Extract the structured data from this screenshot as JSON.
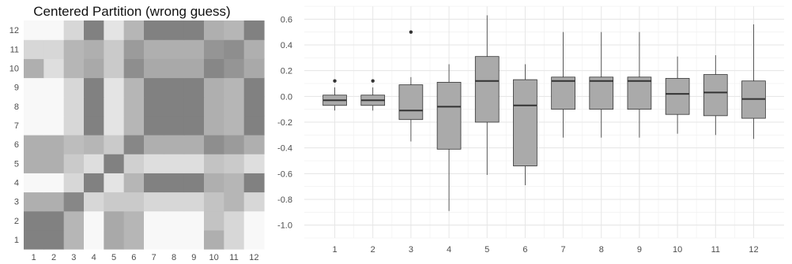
{
  "chart_data": [
    {
      "type": "heatmap",
      "title": "Centered Partition (wrong guess)",
      "x_ticks": [
        "1",
        "2",
        "3",
        "4",
        "5",
        "6",
        "7",
        "8",
        "9",
        "10",
        "11",
        "12"
      ],
      "y_ticks": [
        "1",
        "2",
        "3",
        "4",
        "5",
        "6",
        "7",
        "8",
        "9",
        "10",
        "11",
        "12"
      ],
      "colormap": "white-to-gray",
      "colors": {
        "low": "#ffffff",
        "high": "#7a7a7a"
      },
      "vrange": [
        0,
        1
      ],
      "values": [
        [
          0.95,
          0.95,
          0.55,
          0.05,
          0.65,
          0.55,
          0.05,
          0.05,
          0.05,
          0.6,
          0.3,
          0.05
        ],
        [
          0.95,
          0.95,
          0.55,
          0.05,
          0.65,
          0.55,
          0.05,
          0.05,
          0.05,
          0.45,
          0.3,
          0.05
        ],
        [
          0.6,
          0.6,
          0.9,
          0.3,
          0.4,
          0.4,
          0.3,
          0.3,
          0.3,
          0.45,
          0.55,
          0.3
        ],
        [
          0.05,
          0.05,
          0.3,
          0.95,
          0.2,
          0.55,
          0.95,
          0.95,
          0.95,
          0.6,
          0.55,
          0.95
        ],
        [
          0.6,
          0.6,
          0.4,
          0.25,
          0.95,
          0.35,
          0.25,
          0.25,
          0.25,
          0.45,
          0.4,
          0.25
        ],
        [
          0.6,
          0.6,
          0.5,
          0.55,
          0.4,
          0.9,
          0.6,
          0.6,
          0.6,
          0.85,
          0.75,
          0.6
        ],
        [
          0.05,
          0.05,
          0.3,
          0.95,
          0.2,
          0.55,
          0.95,
          0.95,
          0.95,
          0.6,
          0.55,
          0.95
        ],
        [
          0.05,
          0.05,
          0.3,
          0.95,
          0.2,
          0.55,
          0.95,
          0.95,
          0.95,
          0.6,
          0.55,
          0.95
        ],
        [
          0.05,
          0.05,
          0.3,
          0.95,
          0.2,
          0.55,
          0.95,
          0.95,
          0.95,
          0.6,
          0.55,
          0.95
        ],
        [
          0.6,
          0.25,
          0.55,
          0.65,
          0.4,
          0.85,
          0.65,
          0.65,
          0.65,
          0.9,
          0.8,
          0.65
        ],
        [
          0.3,
          0.3,
          0.55,
          0.6,
          0.4,
          0.75,
          0.6,
          0.6,
          0.6,
          0.8,
          0.85,
          0.6
        ],
        [
          0.05,
          0.05,
          0.3,
          0.95,
          0.2,
          0.55,
          0.95,
          0.95,
          0.95,
          0.6,
          0.55,
          0.95
        ]
      ]
    },
    {
      "type": "box",
      "title": "",
      "xlabel": "",
      "ylabel": "",
      "categories": [
        "1",
        "2",
        "3",
        "4",
        "5",
        "6",
        "7",
        "8",
        "9",
        "10",
        "11",
        "12"
      ],
      "ylim": [
        -1.1,
        0.7
      ],
      "y_ticks": [
        0.6,
        0.4,
        0.2,
        0.0,
        -0.2,
        -0.4,
        -0.6,
        -0.8,
        -1.0
      ],
      "y_tick_labels": [
        "0.6",
        "0.4",
        "0.2",
        "0.0",
        "-0.2",
        "-0.4",
        "-0.6",
        "-0.8",
        "-1.0"
      ],
      "grid": true,
      "box_color": "#aaaaaa",
      "boxes": [
        {
          "whisker_low": -0.11,
          "q1": -0.07,
          "median": -0.03,
          "q3": 0.01,
          "whisker_high": 0.07,
          "outliers": [
            0.12
          ]
        },
        {
          "whisker_low": -0.11,
          "q1": -0.07,
          "median": -0.03,
          "q3": 0.01,
          "whisker_high": 0.07,
          "outliers": [
            0.12
          ]
        },
        {
          "whisker_low": -0.35,
          "q1": -0.18,
          "median": -0.11,
          "q3": 0.09,
          "whisker_high": 0.15,
          "outliers": [
            0.5
          ]
        },
        {
          "whisker_low": -0.89,
          "q1": -0.41,
          "median": -0.08,
          "q3": 0.11,
          "whisker_high": 0.25,
          "outliers": []
        },
        {
          "whisker_low": -0.61,
          "q1": -0.2,
          "median": 0.12,
          "q3": 0.31,
          "whisker_high": 0.63,
          "outliers": []
        },
        {
          "whisker_low": -0.69,
          "q1": -0.54,
          "median": -0.07,
          "q3": 0.13,
          "whisker_high": 0.25,
          "outliers": []
        },
        {
          "whisker_low": -0.32,
          "q1": -0.1,
          "median": 0.12,
          "q3": 0.15,
          "whisker_high": 0.5,
          "outliers": []
        },
        {
          "whisker_low": -0.32,
          "q1": -0.1,
          "median": 0.12,
          "q3": 0.15,
          "whisker_high": 0.5,
          "outliers": []
        },
        {
          "whisker_low": -0.32,
          "q1": -0.1,
          "median": 0.12,
          "q3": 0.15,
          "whisker_high": 0.5,
          "outliers": []
        },
        {
          "whisker_low": -0.29,
          "q1": -0.14,
          "median": 0.02,
          "q3": 0.14,
          "whisker_high": 0.31,
          "outliers": []
        },
        {
          "whisker_low": -0.3,
          "q1": -0.15,
          "median": 0.03,
          "q3": 0.17,
          "whisker_high": 0.32,
          "outliers": []
        },
        {
          "whisker_low": -0.33,
          "q1": -0.17,
          "median": -0.02,
          "q3": 0.12,
          "whisker_high": 0.56,
          "outliers": []
        }
      ]
    }
  ]
}
